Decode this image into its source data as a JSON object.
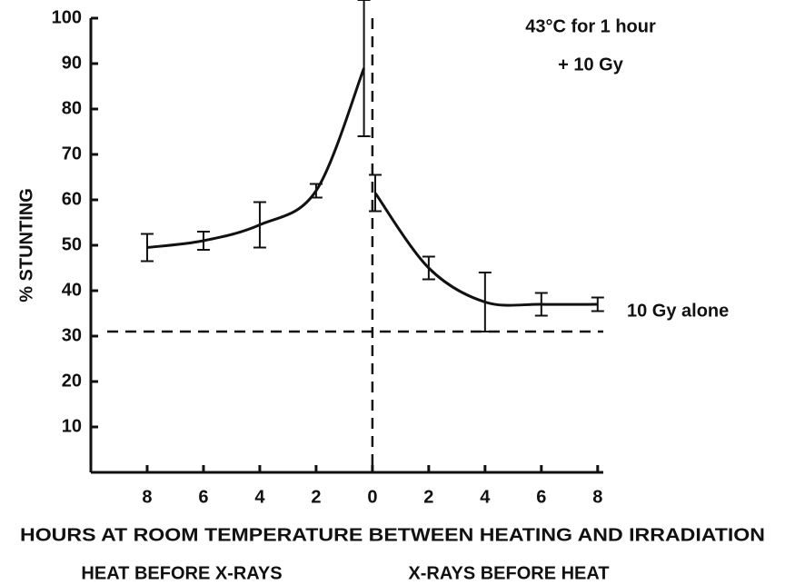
{
  "chart_data": {
    "type": "line",
    "title": "43°C for 1 hour",
    "subtitle": "+ 10 Gy",
    "y_label": "% STUNTING",
    "x_label": "HOURS AT ROOM TEMPERATURE BETWEEN HEATING AND IRRADIATION",
    "annotations": [
      "HEAT BEFORE X-RAYS",
      "X-RAYS BEFORE HEAT"
    ],
    "reference_line": {
      "value": 31,
      "label": "10 Gy alone"
    },
    "vertical_line": 0,
    "color": "#111111",
    "xlim": [
      -10,
      8.2
    ],
    "ylim": [
      0,
      100
    ],
    "xticks": [
      {
        "value": -8,
        "label": "8"
      },
      {
        "value": -6,
        "label": "6"
      },
      {
        "value": -4,
        "label": "4"
      },
      {
        "value": -2,
        "label": "2"
      },
      0,
      2,
      4,
      6,
      8
    ],
    "yticks": [
      10,
      20,
      30,
      40,
      50,
      60,
      70,
      80,
      90,
      100
    ],
    "series": [
      {
        "name": "HEAT BEFORE X-RAYS",
        "x": [
          -8,
          -6,
          -4,
          -2,
          -0.3
        ],
        "values": [
          49.5,
          51,
          54.5,
          62,
          89
        ],
        "errors": [
          3,
          2,
          5,
          1.5,
          15
        ]
      },
      {
        "name": "X-RAYS BEFORE HEAT",
        "x": [
          0.1,
          2,
          4,
          6,
          8
        ],
        "values": [
          61.5,
          45,
          37.5,
          37,
          37
        ],
        "errors": [
          4,
          2.5,
          6.5,
          2.5,
          1.5
        ]
      }
    ]
  }
}
